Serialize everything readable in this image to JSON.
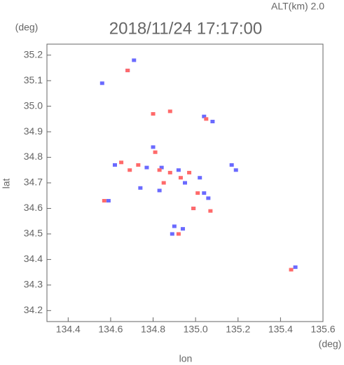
{
  "chart_data": {
    "type": "scatter",
    "title": "2018/11/24 17:17:00",
    "subtitle": "ALT(km) 2.0",
    "y_unit": "(deg)",
    "x_unit": "(deg)",
    "y_label": "lat",
    "x_label": "lon",
    "xlim": [
      134.3,
      135.6
    ],
    "xticks": [
      134.4,
      134.6,
      134.8,
      {
        "value": 135,
        "label": "135.0"
      },
      135.2,
      135.4,
      135.6
    ],
    "ylim": [
      34.157,
      35.243
    ],
    "yticks": [
      34.2,
      34.3,
      34.4,
      34.5,
      34.6,
      34.7,
      34.8,
      34.9,
      {
        "value": 35,
        "label": "35.0"
      },
      35.1,
      35.2
    ],
    "series": [
      {
        "color": "#6a6aff",
        "x": [
          134.56,
          134.68,
          134.71,
          135.04,
          135.08,
          134.8,
          134.62,
          134.77,
          134.84,
          134.92,
          134.95,
          135.02,
          135.04,
          135.06,
          134.99,
          134.9,
          134.89,
          134.94,
          135.47,
          135.17,
          135.19,
          134.59,
          134.74,
          134.83
        ],
        "values": [
          35.09,
          35.14,
          35.18,
          34.96,
          34.94,
          34.84,
          34.77,
          34.76,
          34.76,
          34.75,
          34.7,
          34.72,
          34.66,
          34.64,
          34.6,
          34.53,
          34.5,
          34.52,
          34.37,
          34.77,
          34.75,
          34.63,
          34.68,
          34.67
        ]
      },
      {
        "color": "#ff6a6a",
        "x": [
          134.68,
          134.8,
          134.88,
          135.05,
          134.65,
          134.73,
          134.81,
          134.83,
          134.88,
          134.93,
          134.97,
          135.01,
          134.99,
          134.92,
          135.45,
          135.07,
          134.85,
          134.57,
          134.69
        ],
        "values": [
          35.14,
          34.97,
          34.98,
          34.95,
          34.78,
          34.77,
          34.82,
          34.75,
          34.74,
          34.72,
          34.74,
          34.66,
          34.6,
          34.5,
          34.36,
          34.59,
          34.7,
          34.63,
          34.75
        ]
      }
    ]
  }
}
